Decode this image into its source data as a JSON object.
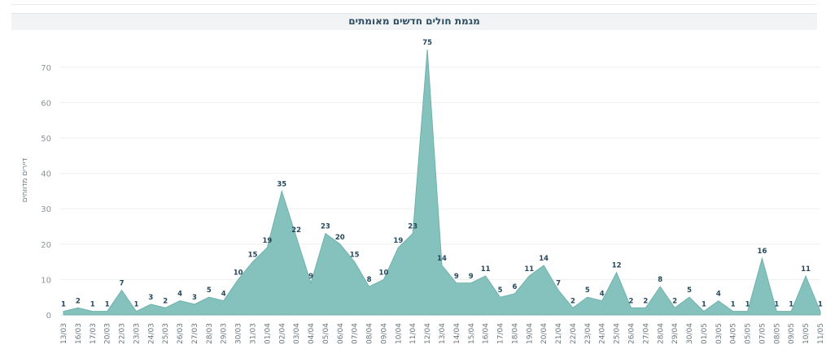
{
  "chart_data": {
    "type": "area",
    "title": "מגמת חולים חדשים מאומתים",
    "ylabel": "דיירים מדווחים",
    "ylim": [
      0,
      75
    ],
    "yticks": [
      0,
      10,
      20,
      30,
      40,
      50,
      60,
      70
    ],
    "grid": true,
    "colors": {
      "fill": "#7fbfb9",
      "stroke": "#6fb2ab",
      "label": "#24485c"
    },
    "x": [
      "13/03",
      "16/03",
      "17/03",
      "20/03",
      "22/03",
      "23/03",
      "24/03",
      "25/03",
      "26/03",
      "27/03",
      "28/03",
      "29/03",
      "30/03",
      "31/03",
      "01/04",
      "02/04",
      "03/04",
      "04/04",
      "05/04",
      "06/04",
      "07/04",
      "08/04",
      "09/04",
      "10/04",
      "11/04",
      "12/04",
      "13/04",
      "14/04",
      "15/04",
      "16/04",
      "17/04",
      "18/04",
      "19/04",
      "20/04",
      "21/04",
      "22/04",
      "23/04",
      "24/04",
      "25/04",
      "26/04",
      "27/04",
      "28/04",
      "29/04",
      "30/04",
      "01/05",
      "03/05",
      "04/05",
      "05/05",
      "07/05",
      "08/05",
      "09/05",
      "10/05",
      "11/05"
    ],
    "points": [
      {
        "v": 1,
        "label": "1"
      },
      {
        "v": 2,
        "label": "2"
      },
      {
        "v": 1,
        "label": "1"
      },
      {
        "v": 1,
        "label": "1"
      },
      {
        "v": 7,
        "label": "7"
      },
      {
        "v": 1,
        "label": "1"
      },
      {
        "v": 3,
        "label": "3"
      },
      {
        "v": 2,
        "label": "2"
      },
      {
        "v": 4,
        "label": "4"
      },
      {
        "v": 3,
        "label": "3"
      },
      {
        "v": 5,
        "label": "5"
      },
      {
        "v": 4,
        "label": "4"
      },
      {
        "v": 10,
        "label": "10"
      },
      {
        "v": 15,
        "label": "15"
      },
      {
        "v": 19,
        "label": "19"
      },
      {
        "v": 35,
        "label": "35"
      },
      {
        "v": 22,
        "label": "22"
      },
      {
        "v": 9,
        "label": "9"
      },
      {
        "v": 23,
        "label": "23"
      },
      {
        "v": 20,
        "label": "20"
      },
      {
        "v": 15,
        "label": "15"
      },
      {
        "v": 8,
        "label": "8"
      },
      {
        "v": 10,
        "label": "10"
      },
      {
        "v": 19,
        "label": "19"
      },
      {
        "v": 23,
        "label": "23"
      },
      {
        "v": 75,
        "label": "75"
      },
      {
        "v": 14,
        "label": "14"
      },
      {
        "v": 9,
        "label": "9"
      },
      {
        "v": 9,
        "label": "9"
      },
      {
        "v": 11,
        "label": "11"
      },
      {
        "v": 5,
        "label": "5"
      },
      {
        "v": 6,
        "label": "6"
      },
      {
        "v": 11,
        "label": "11"
      },
      {
        "v": 14,
        "label": "14"
      },
      {
        "v": 7,
        "label": "7"
      },
      {
        "v": 2,
        "label": "2"
      },
      {
        "v": 5,
        "label": "5"
      },
      {
        "v": 4,
        "label": "4"
      },
      {
        "v": 12,
        "label": "12"
      },
      {
        "v": 2,
        "label": "2"
      },
      {
        "v": 2,
        "label": "2"
      },
      {
        "v": 8,
        "label": "8"
      },
      {
        "v": 2,
        "label": "2"
      },
      {
        "v": 5,
        "label": "5"
      },
      {
        "v": 1,
        "label": "1"
      },
      {
        "v": 4,
        "label": "4"
      },
      {
        "v": 1,
        "label": "1"
      },
      {
        "v": 1,
        "label": "1"
      },
      {
        "v": 16,
        "label": "16"
      },
      {
        "v": 1,
        "label": "1"
      },
      {
        "v": 1,
        "label": "1"
      },
      {
        "v": 11,
        "label": "11"
      },
      {
        "v": 1,
        "label": "1"
      }
    ]
  }
}
